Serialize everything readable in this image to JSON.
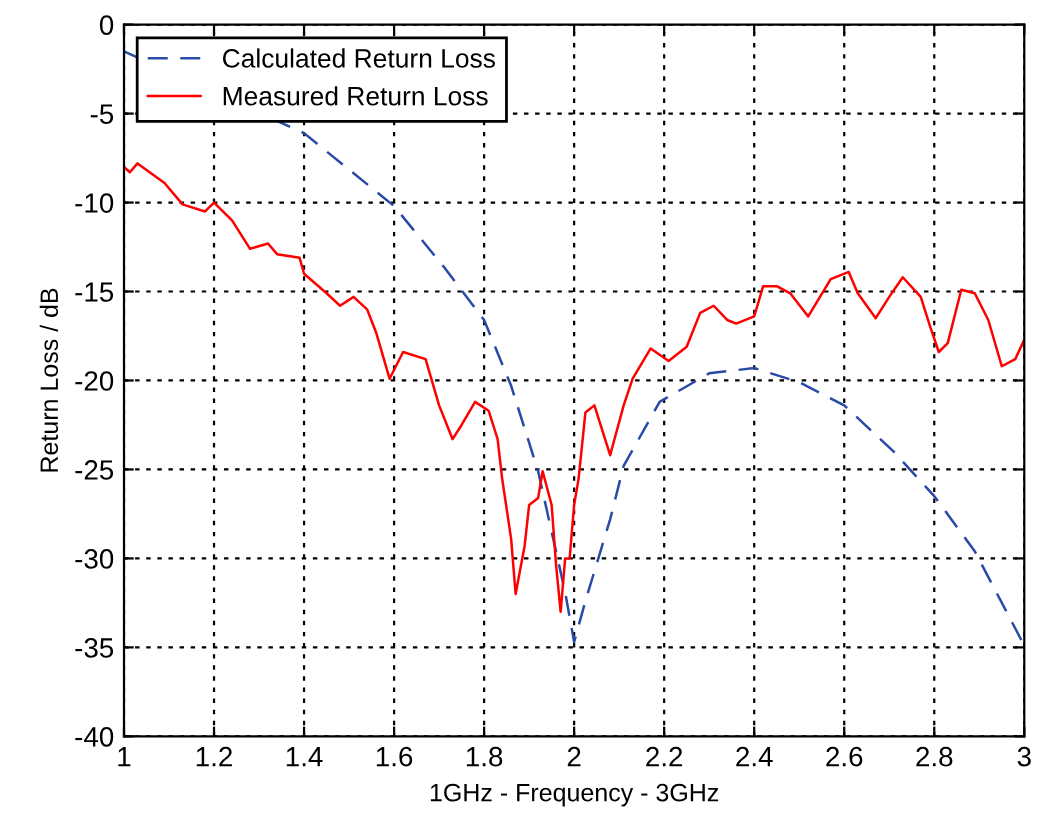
{
  "chart_data": {
    "type": "line",
    "xlabel": "1GHz - Frequency - 3GHz",
    "ylabel": "Return Loss / dB",
    "xlim": [
      1,
      3
    ],
    "ylim": [
      -40,
      0
    ],
    "xticks": [
      1,
      1.2,
      1.4,
      1.6,
      1.8,
      2,
      2.2,
      2.4,
      2.6,
      2.8,
      3
    ],
    "yticks": [
      -40,
      -35,
      -30,
      -25,
      -20,
      -15,
      -10,
      -5,
      0
    ],
    "grid": true,
    "legend": "top left",
    "marker": "none",
    "series": [
      {
        "name": "Calculated Return Loss",
        "color": "#2a4aa8",
        "line_style": "dashed",
        "x": [
          1.0,
          1.4,
          1.6,
          1.71,
          1.8,
          1.86,
          1.92,
          1.98,
          2.0,
          2.025,
          2.08,
          2.11,
          2.19,
          2.3,
          2.4,
          2.5,
          2.6,
          2.71,
          2.8,
          2.89,
          3.0
        ],
        "values": [
          -1.5,
          -6.1,
          -10.2,
          -13.6,
          -16.6,
          -20.3,
          -25.1,
          -31.9,
          -34.7,
          -32.4,
          -27.8,
          -24.8,
          -21.2,
          -19.6,
          -19.3,
          -20.1,
          -21.4,
          -24.0,
          -26.5,
          -29.6,
          -34.9
        ]
      },
      {
        "name": "Measured Return Loss",
        "color": "#ff0000",
        "line_style": "solid",
        "x": [
          1.0,
          1.013,
          1.03,
          1.09,
          1.13,
          1.18,
          1.2,
          1.24,
          1.28,
          1.32,
          1.34,
          1.39,
          1.4,
          1.45,
          1.48,
          1.51,
          1.54,
          1.56,
          1.59,
          1.62,
          1.67,
          1.7,
          1.73,
          1.75,
          1.78,
          1.81,
          1.83,
          1.84,
          1.86,
          1.87,
          1.89,
          1.9,
          1.92,
          1.93,
          1.95,
          1.96,
          1.97,
          1.98,
          1.99,
          2.0,
          2.01,
          2.025,
          2.045,
          2.08,
          2.11,
          2.13,
          2.17,
          2.21,
          2.25,
          2.28,
          2.31,
          2.34,
          2.36,
          2.4,
          2.42,
          2.45,
          2.48,
          2.52,
          2.57,
          2.61,
          2.63,
          2.67,
          2.7,
          2.73,
          2.77,
          2.79,
          2.81,
          2.83,
          2.86,
          2.89,
          2.92,
          2.95,
          2.98,
          3.0
        ],
        "values": [
          -8.0,
          -8.3,
          -7.8,
          -8.9,
          -10.1,
          -10.5,
          -10.0,
          -11.0,
          -12.6,
          -12.3,
          -12.9,
          -13.1,
          -14.0,
          -15.1,
          -15.8,
          -15.3,
          -16.0,
          -17.3,
          -19.9,
          -18.4,
          -18.8,
          -21.4,
          -23.3,
          -22.5,
          -21.2,
          -21.7,
          -23.3,
          -25.5,
          -28.9,
          -32.0,
          -29.3,
          -27.0,
          -26.6,
          -25.1,
          -27.0,
          -30.4,
          -33.0,
          -30.0,
          -30.0,
          -27.0,
          -25.5,
          -21.8,
          -21.4,
          -24.2,
          -21.4,
          -19.9,
          -18.2,
          -18.9,
          -18.1,
          -16.2,
          -15.8,
          -16.6,
          -16.8,
          -16.4,
          -14.7,
          -14.7,
          -15.1,
          -16.4,
          -14.3,
          -13.9,
          -15.1,
          -16.5,
          -15.3,
          -14.2,
          -15.3,
          -16.9,
          -18.4,
          -17.9,
          -14.9,
          -15.1,
          -16.6,
          -19.2,
          -18.8,
          -17.7
        ]
      }
    ]
  }
}
